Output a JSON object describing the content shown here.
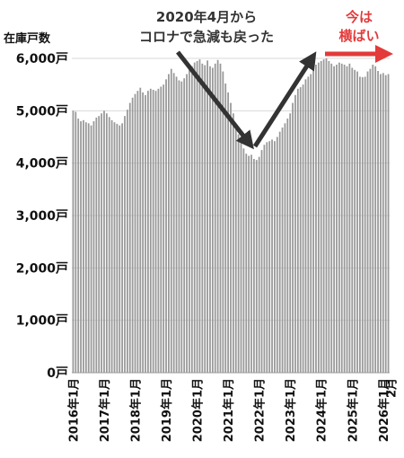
{
  "chart_data": {
    "type": "bar",
    "title": "",
    "xlabel": "",
    "ylabel": "在庫戸数",
    "ylim": [
      0,
      6000
    ],
    "y_ticks": [
      0,
      1000,
      2000,
      3000,
      4000,
      5000,
      6000
    ],
    "y_tick_labels": [
      "0戸",
      "1,000戸",
      "2,000戸",
      "3,000戸",
      "4,000戸",
      "5,000戸",
      "6,000戸"
    ],
    "x_tick_labels": [
      "2016年1月",
      "2017年1月",
      "2018年1月",
      "2019年1月",
      "2020年1月",
      "2021年1月",
      "2022年1月",
      "2023年1月",
      "2024年1月",
      "2025年1月",
      "2026年1月",
      "2月"
    ],
    "x_tick_index": [
      0,
      12,
      24,
      36,
      48,
      60,
      72,
      84,
      96,
      108,
      120,
      121
    ],
    "grid": true,
    "bar_color": "#999999",
    "values": [
      5000,
      4980,
      4850,
      4800,
      4820,
      4780,
      4760,
      4720,
      4800,
      4870,
      4900,
      4950,
      5000,
      4950,
      4880,
      4820,
      4780,
      4750,
      4720,
      4760,
      4900,
      5020,
      5150,
      5250,
      5320,
      5380,
      5440,
      5350,
      5300,
      5380,
      5420,
      5400,
      5380,
      5420,
      5460,
      5500,
      5600,
      5700,
      5800,
      5720,
      5650,
      5580,
      5560,
      5620,
      5700,
      5780,
      5850,
      5920,
      5950,
      5980,
      5900,
      5870,
      5960,
      5850,
      5820,
      5900,
      5970,
      5900,
      5750,
      5520,
      5350,
      5150,
      4950,
      4750,
      4550,
      4400,
      4280,
      4180,
      4140,
      4160,
      4080,
      4060,
      4120,
      4250,
      4350,
      4400,
      4420,
      4450,
      4420,
      4500,
      4600,
      4680,
      4760,
      4850,
      4950,
      5150,
      5300,
      5420,
      5450,
      5500,
      5600,
      5650,
      5700,
      5800,
      5880,
      5920,
      5950,
      5980,
      6000,
      5950,
      5900,
      5850,
      5880,
      5920,
      5900,
      5880,
      5850,
      5900,
      5820,
      5780,
      5750,
      5650,
      5640,
      5650,
      5750,
      5800,
      5880,
      5850,
      5760,
      5700,
      5720,
      5680,
      5700
    ],
    "annotations": [
      {
        "lines": [
          "2020年4月から",
          "コロナで急減も戻った"
        ],
        "color": "#333333"
      },
      {
        "lines": [
          "今は",
          "横ばい"
        ],
        "color": "#e33a3a"
      }
    ]
  }
}
